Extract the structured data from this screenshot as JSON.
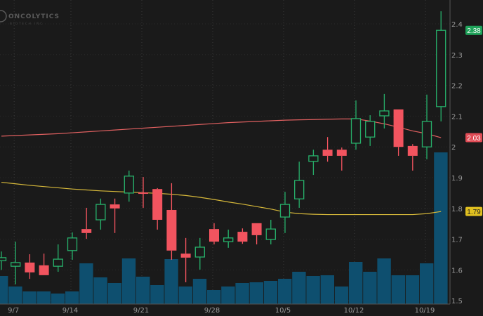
{
  "logo": {
    "name": "ONCOLYTICS",
    "sub": "BIOTECH INC"
  },
  "colors": {
    "background": "#1a1a1a",
    "up": "#27b06a",
    "down": "#f2545f",
    "volume": "#0e4f6f",
    "ma_red": "#e06060",
    "ma_yellow": "#d6b83a",
    "grid": "#3a3a3a"
  },
  "chart_data": {
    "type": "candlestick",
    "title": "",
    "ylim": [
      1.5,
      2.45
    ],
    "grid": true,
    "y_ticks": [
      "2.4",
      "2.3",
      "2.2",
      "2.1",
      "2",
      "1.9",
      "1.8",
      "1.7",
      "1.6",
      "1.5"
    ],
    "x_tick_labels": [
      {
        "label": "9/7",
        "index": 1
      },
      {
        "label": "9/14",
        "index": 5
      },
      {
        "label": "9/21",
        "index": 10
      },
      {
        "label": "9/28",
        "index": 15
      },
      {
        "label": "10/5",
        "index": 20
      },
      {
        "label": "10/12",
        "index": 25
      },
      {
        "label": "10/19",
        "index": 30
      }
    ],
    "candles": [
      {
        "o": 1.63,
        "h": 1.66,
        "l": 1.6,
        "c": 1.64
      },
      {
        "o": 1.612,
        "h": 1.692,
        "l": 1.553,
        "c": 1.624
      },
      {
        "o": 1.624,
        "h": 1.651,
        "l": 1.571,
        "c": 1.592
      },
      {
        "o": 1.615,
        "h": 1.653,
        "l": 1.583,
        "c": 1.583
      },
      {
        "o": 1.612,
        "h": 1.683,
        "l": 1.594,
        "c": 1.635
      },
      {
        "o": 1.663,
        "h": 1.722,
        "l": 1.633,
        "c": 1.704
      },
      {
        "o": 1.733,
        "h": 1.802,
        "l": 1.701,
        "c": 1.72
      },
      {
        "o": 1.763,
        "h": 1.832,
        "l": 1.731,
        "c": 1.813
      },
      {
        "o": 1.813,
        "h": 1.832,
        "l": 1.72,
        "c": 1.8
      },
      {
        "o": 1.85,
        "h": 1.923,
        "l": 1.822,
        "c": 1.905
      },
      {
        "o": 1.852,
        "h": 1.902,
        "l": 1.802,
        "c": 1.848
      },
      {
        "o": 1.863,
        "h": 1.866,
        "l": 1.731,
        "c": 1.763
      },
      {
        "o": 1.795,
        "h": 1.882,
        "l": 1.633,
        "c": 1.663
      },
      {
        "o": 1.653,
        "h": 1.704,
        "l": 1.56,
        "c": 1.64
      },
      {
        "o": 1.642,
        "h": 1.704,
        "l": 1.601,
        "c": 1.674
      },
      {
        "o": 1.733,
        "h": 1.752,
        "l": 1.683,
        "c": 1.692
      },
      {
        "o": 1.692,
        "h": 1.731,
        "l": 1.672,
        "c": 1.704
      },
      {
        "o": 1.724,
        "h": 1.735,
        "l": 1.685,
        "c": 1.692
      },
      {
        "o": 1.752,
        "h": 1.752,
        "l": 1.683,
        "c": 1.713
      },
      {
        "o": 1.699,
        "h": 1.763,
        "l": 1.683,
        "c": 1.733
      },
      {
        "o": 1.772,
        "h": 1.854,
        "l": 1.72,
        "c": 1.813
      },
      {
        "o": 1.831,
        "h": 1.952,
        "l": 1.802,
        "c": 1.891
      },
      {
        "o": 1.953,
        "h": 1.991,
        "l": 1.909,
        "c": 1.971
      },
      {
        "o": 1.991,
        "h": 2.032,
        "l": 1.952,
        "c": 1.971
      },
      {
        "o": 1.991,
        "h": 1.998,
        "l": 1.923,
        "c": 1.971
      },
      {
        "o": 2.012,
        "h": 2.151,
        "l": 1.991,
        "c": 2.092
      },
      {
        "o": 2.032,
        "h": 2.103,
        "l": 2.003,
        "c": 2.083
      },
      {
        "o": 2.101,
        "h": 2.172,
        "l": 2.06,
        "c": 2.117
      },
      {
        "o": 2.122,
        "h": 2.122,
        "l": 1.971,
        "c": 2.0
      },
      {
        "o": 2.003,
        "h": 2.009,
        "l": 1.923,
        "c": 1.971
      },
      {
        "o": 2.0,
        "h": 2.17,
        "l": 1.96,
        "c": 2.083
      },
      {
        "o": 2.131,
        "h": 2.441,
        "l": 2.083,
        "c": 2.379
      }
    ],
    "volume_relative": [
      40,
      25,
      18,
      18,
      15,
      18,
      58,
      38,
      30,
      65,
      39,
      27,
      64,
      25,
      36,
      20,
      25,
      30,
      31,
      33,
      36,
      46,
      40,
      41,
      25,
      60,
      46,
      65,
      41,
      41,
      58,
      216
    ],
    "ma_red": [
      2.035,
      2.037,
      2.039,
      2.041,
      2.043,
      2.046,
      2.049,
      2.052,
      2.055,
      2.058,
      2.061,
      2.064,
      2.067,
      2.07,
      2.073,
      2.076,
      2.079,
      2.081,
      2.083,
      2.085,
      2.087,
      2.088,
      2.089,
      2.09,
      2.091,
      2.091,
      2.084,
      2.075,
      2.064,
      2.052,
      2.043,
      2.03
    ],
    "ma_yellow": [
      1.885,
      1.88,
      1.875,
      1.871,
      1.867,
      1.863,
      1.86,
      1.857,
      1.855,
      1.853,
      1.851,
      1.849,
      1.846,
      1.842,
      1.836,
      1.829,
      1.821,
      1.814,
      1.806,
      1.798,
      1.788,
      1.783,
      1.781,
      1.78,
      1.78,
      1.78,
      1.78,
      1.78,
      1.78,
      1.78,
      1.783,
      1.79
    ],
    "price_labels": [
      {
        "text": "2.38",
        "value": 2.379,
        "color": "#1fa35a"
      },
      {
        "text": "2.03",
        "value": 2.03,
        "color": "#e04b55"
      },
      {
        "text": "1.79",
        "value": 1.79,
        "color": "#e0c020"
      }
    ]
  }
}
